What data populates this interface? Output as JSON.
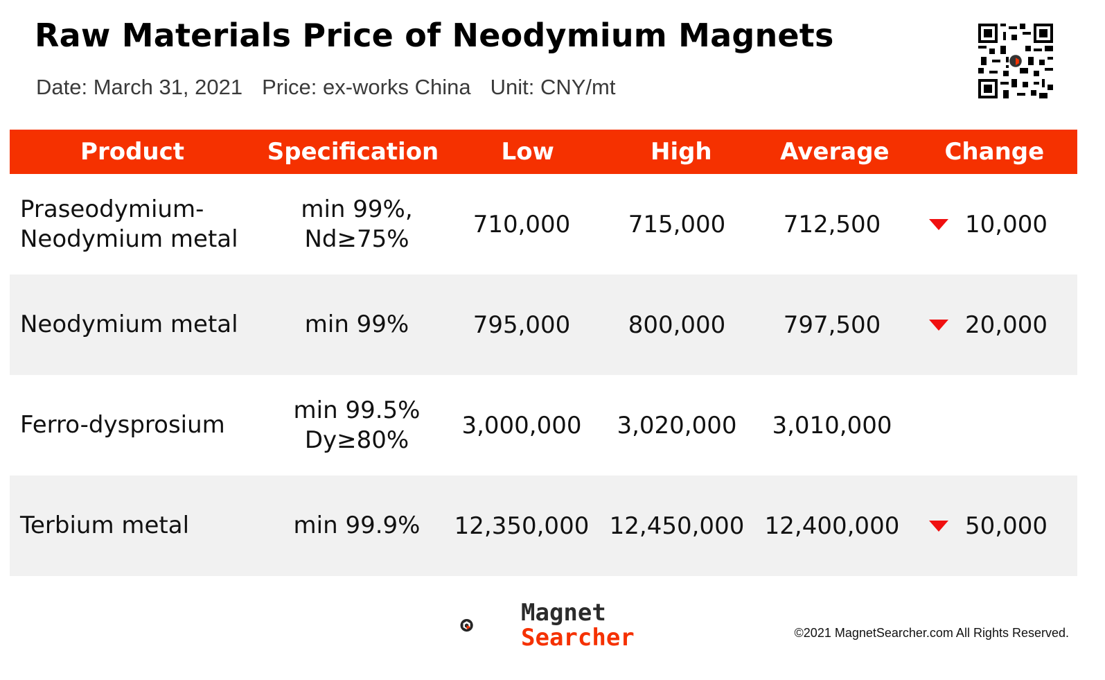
{
  "header": {
    "title": "Raw Materials Price of Neodymium Magnets",
    "date": "Date: March 31, 2021",
    "price": "Price: ex-works China",
    "unit": "Unit: CNY/mt"
  },
  "table": {
    "columns": [
      "Product",
      "Specification",
      "Low",
      "High",
      "Average",
      "Change"
    ],
    "rows": [
      {
        "product_l1": "Praseodymium-",
        "product_l2": "Neodymium metal",
        "spec_l1": "min 99%,",
        "spec_l2": "Nd≥75%",
        "low": "710,000",
        "high": "715,000",
        "average": "712,500",
        "change": "10,000",
        "direction": "down"
      },
      {
        "product_l1": "Neodymium metal",
        "product_l2": "",
        "spec_l1": "min 99%",
        "spec_l2": "",
        "low": "795,000",
        "high": "800,000",
        "average": "797,500",
        "change": "20,000",
        "direction": "down"
      },
      {
        "product_l1": "Ferro-dysprosium",
        "product_l2": "",
        "spec_l1": "min 99.5%",
        "spec_l2": "Dy≥80%",
        "low": "3,000,000",
        "high": "3,020,000",
        "average": "3,010,000",
        "change": "",
        "direction": "none"
      },
      {
        "product_l1": "Terbium metal",
        "product_l2": "",
        "spec_l1": "min 99.9%",
        "spec_l2": "",
        "low": "12,350,000",
        "high": "12,450,000",
        "average": "12,400,000",
        "change": "50,000",
        "direction": "down"
      }
    ]
  },
  "colors": {
    "accent": "#f53100",
    "down": "#f01010",
    "row_alt": "#f1f1f1"
  },
  "footer": {
    "logo_line1": "Magnet",
    "logo_line2": "Searcher",
    "copyright": "©2021 MagnetSearcher.com All Rights Reserved."
  }
}
